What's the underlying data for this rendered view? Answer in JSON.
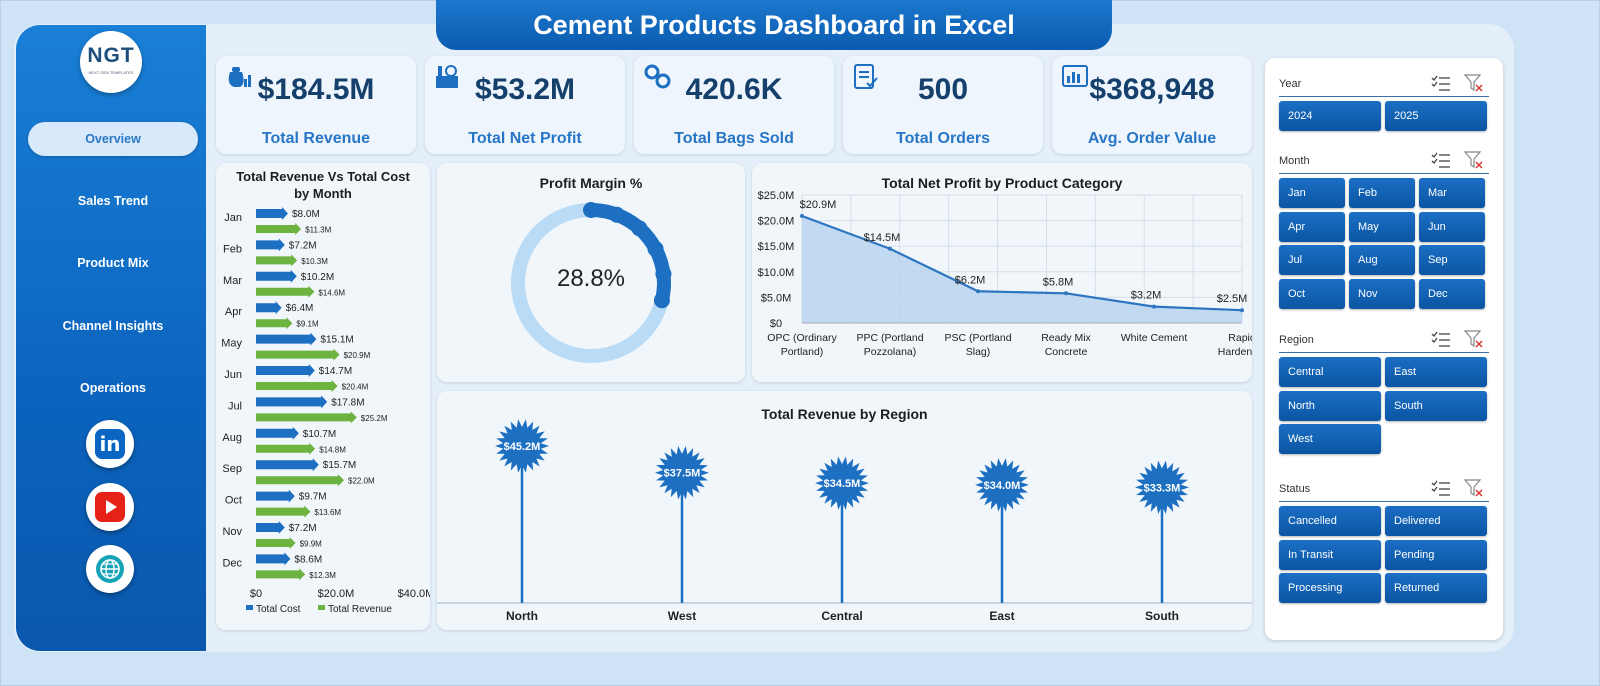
{
  "title": "Cement Products Dashboard in Excel",
  "logo": {
    "text": "NGT",
    "subtext": "NEXT GEN TEMPLATES"
  },
  "nav": [
    "Overview",
    "Sales Trend",
    "Product Mix",
    "Channel Insights",
    "Operations"
  ],
  "social": {
    "linkedin": "in"
  },
  "kpis": [
    {
      "value": "$184.5M",
      "label": "Total Revenue",
      "icon": "money-bag-icon"
    },
    {
      "value": "$53.2M",
      "label": "Total Net Profit",
      "icon": "factory-icon"
    },
    {
      "value": "420.6K",
      "label": "Total Bags Sold",
      "icon": "gears-icon"
    },
    {
      "value": "500",
      "label": "Total Orders",
      "icon": "checklist-icon"
    },
    {
      "value": "$368,948",
      "label": "Avg. Order Value",
      "icon": "report-chart-icon"
    }
  ],
  "charts": {
    "monthly": {
      "title": "Total Revenue Vs Total Cost by Month",
      "legend": [
        "Total Cost",
        "Total Revenue"
      ],
      "x_ticks": [
        "$0",
        "$20.0M",
        "$40.0M"
      ],
      "color_cost": "#1d6fc2",
      "color_revenue": "#6cb33f"
    },
    "margin": {
      "title": "Profit Margin %",
      "value_text": "28.8%"
    },
    "category": {
      "title": "Total Net Profit by Product Category",
      "y_ticks": [
        "$25.0M",
        "$20.0M",
        "$15.0M",
        "$10.0M",
        "$5.0M",
        "$0"
      ],
      "x_labels": [
        [
          "OPC (Ordinary",
          "Portland)"
        ],
        [
          "PPC (Portland",
          "Pozzolana)"
        ],
        [
          "PSC (Portland",
          "Slag)"
        ],
        [
          "Ready Mix",
          "Concrete"
        ],
        [
          "White Cement"
        ],
        [
          "Rapid",
          "Hardening"
        ]
      ]
    },
    "region": {
      "title": "Total Revenue  by Region"
    }
  },
  "filters": {
    "year": {
      "label": "Year",
      "options": [
        "2024",
        "2025"
      ]
    },
    "month": {
      "label": "Month",
      "options": [
        "Jan",
        "Feb",
        "Mar",
        "Apr",
        "May",
        "Jun",
        "Jul",
        "Aug",
        "Sep",
        "Oct",
        "Nov",
        "Dec"
      ]
    },
    "region": {
      "label": "Region",
      "options": [
        "Central",
        "East",
        "North",
        "South",
        "West"
      ]
    },
    "status": {
      "label": "Status",
      "options": [
        "Cancelled",
        "Delivered",
        "In Transit",
        "Pending",
        "Processing",
        "Returned"
      ]
    }
  },
  "chart_data": [
    {
      "type": "bar",
      "title": "Total Revenue Vs Total Cost by Month",
      "orientation": "horizontal",
      "categories": [
        "Jan",
        "Feb",
        "Mar",
        "Apr",
        "May",
        "Jun",
        "Jul",
        "Aug",
        "Sep",
        "Oct",
        "Nov",
        "Dec"
      ],
      "series": [
        {
          "name": "Total Cost",
          "values": [
            8.0,
            7.2,
            10.2,
            6.4,
            15.1,
            14.7,
            17.8,
            10.7,
            15.7,
            9.7,
            7.2,
            8.6
          ],
          "labels": [
            "$8.0M",
            "$7.2M",
            "$10.2M",
            "$6.4M",
            "$15.1M",
            "$14.7M",
            "$17.8M",
            "$10.7M",
            "$15.7M",
            "$9.7M",
            "$7.2M",
            "$8.6M"
          ]
        },
        {
          "name": "Total Revenue",
          "values": [
            11.3,
            10.3,
            14.6,
            9.1,
            20.9,
            20.4,
            25.2,
            14.8,
            22.0,
            13.6,
            9.9,
            12.3
          ],
          "labels": [
            "$11.3M",
            "$10.3M",
            "$14.6M",
            "$9.1M",
            "$20.9M",
            "$20.4M",
            "$25.2M",
            "$14.8M",
            "$22.0M",
            "$13.6M",
            "$9.9M",
            "$12.3M"
          ]
        }
      ],
      "xlim": [
        0,
        40
      ],
      "units": "M"
    },
    {
      "type": "pie",
      "title": "Profit Margin %",
      "values": [
        28.8,
        71.2
      ],
      "label": "28.8%"
    },
    {
      "type": "area",
      "title": "Total Net Profit by Product Category",
      "categories": [
        "OPC (Ordinary Portland)",
        "PPC (Portland Pozzolana)",
        "PSC (Portland Slag)",
        "Ready Mix Concrete",
        "White Cement",
        "Rapid Hardening"
      ],
      "values": [
        20.9,
        14.5,
        6.2,
        5.8,
        3.2,
        2.5
      ],
      "labels": [
        "$20.9M",
        "$14.5M",
        "$6.2M",
        "$5.8M",
        "$3.2M",
        "$2.5M"
      ],
      "ylim": [
        0,
        25
      ],
      "grid": true
    },
    {
      "type": "bar",
      "title": "Total Revenue  by Region",
      "categories": [
        "North",
        "West",
        "Central",
        "East",
        "South"
      ],
      "values": [
        45.2,
        37.5,
        34.5,
        34.0,
        33.3
      ],
      "labels": [
        "$45.2M",
        "$37.5M",
        "$34.5M",
        "$34.0M",
        "$33.3M"
      ]
    }
  ]
}
